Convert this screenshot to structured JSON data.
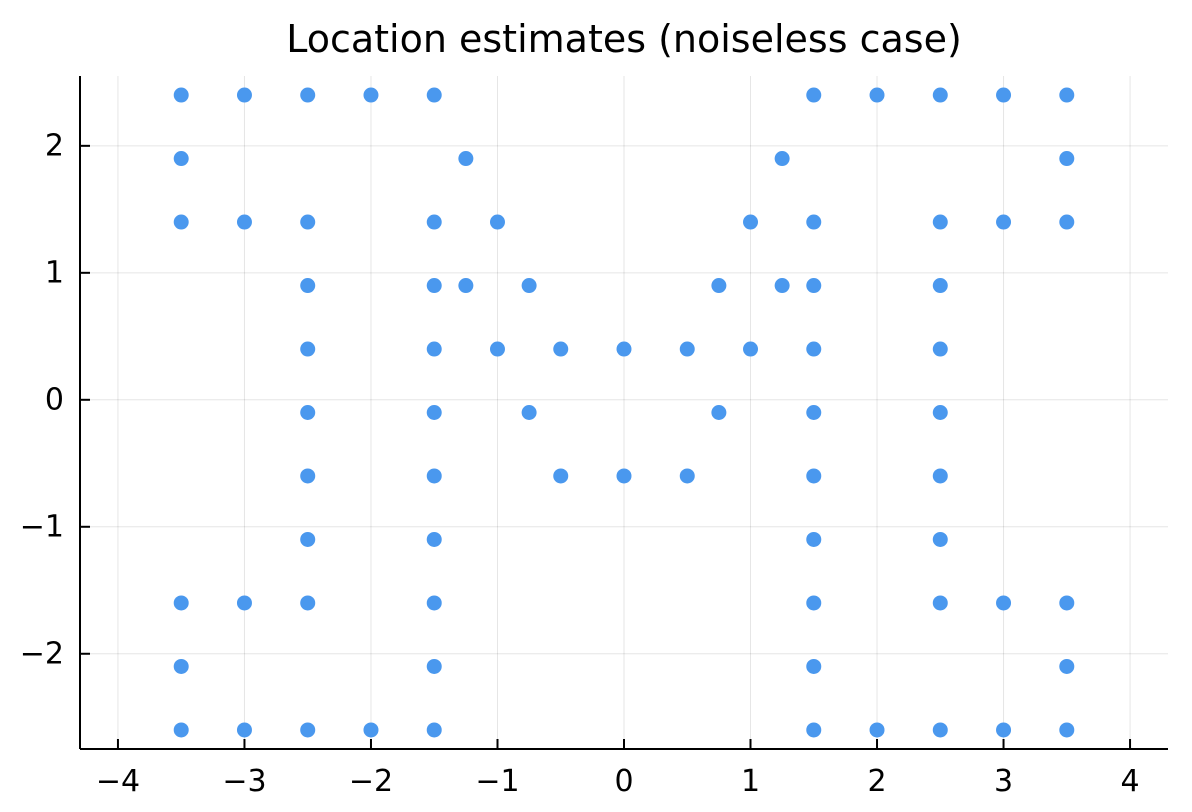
{
  "chart_data": {
    "type": "scatter",
    "title": "Location estimates (noiseless case)",
    "xlabel": "",
    "ylabel": "",
    "xlim": [
      -4.3,
      4.3
    ],
    "ylim": [
      -2.75,
      2.55
    ],
    "x_ticks": [
      -4,
      -3,
      -2,
      -1,
      0,
      1,
      2,
      3,
      4
    ],
    "x_tick_labels": [
      "−4",
      "−3",
      "−2",
      "−1",
      "0",
      "1",
      "2",
      "3",
      "4"
    ],
    "y_ticks": [
      -2,
      -1,
      0,
      1,
      2
    ],
    "y_tick_labels": [
      "−2",
      "−1",
      "0",
      "1",
      "2"
    ],
    "grid": true,
    "legend": "none",
    "marker_color": "#4a98ee",
    "series": [
      {
        "x": [
          -3.5,
          -3.0,
          -2.5,
          -2.0,
          -1.5,
          1.5,
          2.0,
          2.5,
          3.0,
          3.5,
          -3.5,
          -1.25,
          1.25,
          3.5,
          -3.5,
          -3.0,
          -2.5,
          -1.5,
          -1.0,
          1.0,
          1.5,
          2.5,
          3.0,
          3.5,
          -2.5,
          -1.5,
          -1.25,
          -0.75,
          0.75,
          1.25,
          1.5,
          2.5,
          -2.5,
          -1.5,
          -1.0,
          -0.5,
          0.0,
          0.5,
          1.0,
          1.5,
          2.5,
          -2.5,
          -1.5,
          -0.75,
          0.75,
          1.5,
          2.5,
          -2.5,
          -1.5,
          -0.5,
          0.0,
          0.5,
          1.5,
          2.5,
          -2.5,
          -1.5,
          1.5,
          2.5,
          -3.5,
          -3.0,
          -2.5,
          -1.5,
          1.5,
          2.5,
          3.0,
          3.5,
          -3.5,
          -1.5,
          1.5,
          3.5,
          -3.5,
          -3.0,
          -2.5,
          -2.0,
          -1.5,
          1.5,
          2.0,
          2.5,
          3.0,
          3.5
        ],
        "y": [
          2.4,
          2.4,
          2.4,
          2.4,
          2.4,
          2.4,
          2.4,
          2.4,
          2.4,
          2.4,
          1.9,
          1.9,
          1.9,
          1.9,
          1.4,
          1.4,
          1.4,
          1.4,
          1.4,
          1.4,
          1.4,
          1.4,
          1.4,
          1.4,
          0.9,
          0.9,
          0.9,
          0.9,
          0.9,
          0.9,
          0.9,
          0.9,
          0.4,
          0.4,
          0.4,
          0.4,
          0.4,
          0.4,
          0.4,
          0.4,
          0.4,
          -0.1,
          -0.1,
          -0.1,
          -0.1,
          -0.1,
          -0.1,
          -0.6,
          -0.6,
          -0.6,
          -0.6,
          -0.6,
          -0.6,
          -0.6,
          -1.1,
          -1.1,
          -1.1,
          -1.1,
          -1.6,
          -1.6,
          -1.6,
          -1.6,
          -1.6,
          -1.6,
          -1.6,
          -1.6,
          -2.1,
          -2.1,
          -2.1,
          -2.1,
          -2.6,
          -2.6,
          -2.6,
          -2.6,
          -2.6,
          -2.6,
          -2.6,
          -2.6,
          -2.6,
          -2.6
        ]
      }
    ]
  }
}
